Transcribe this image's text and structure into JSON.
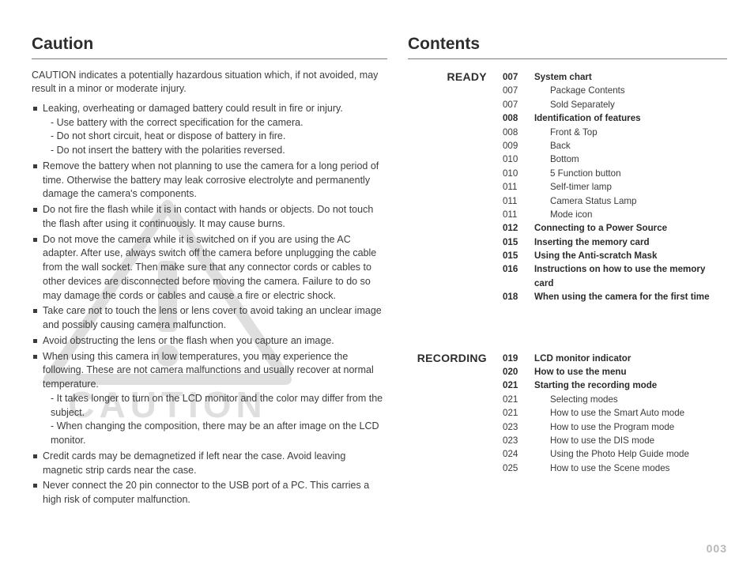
{
  "left": {
    "heading": "Caution",
    "intro": "CAUTION indicates a potentially hazardous situation which, if not avoided, may result in a minor or moderate injury.",
    "items": [
      {
        "text": "Leaking, overheating or damaged battery could result in fire or injury.",
        "subs": [
          "- Use battery with the correct specification for the camera.",
          "- Do not short circuit, heat or dispose of battery in fire.",
          "- Do not insert the battery with the polarities reversed."
        ]
      },
      {
        "text": "Remove the battery when not planning to use the camera for a long period of time. Otherwise the battery may leak corrosive electrolyte and permanently damage the camera's components."
      },
      {
        "text": "Do not fire the flash while it is in contact with hands or objects. Do not touch the flash after using it continuously. It may cause burns."
      },
      {
        "text": "Do not move the camera while it is switched on if you are using the AC adapter. After use, always switch off the camera before unplugging the cable from the wall socket. Then make sure that any connector cords or cables to other devices are disconnected before moving the camera. Failure to do so may damage the cords or cables and cause a fire or electric shock."
      },
      {
        "text": "Take care not to touch the lens or lens cover to avoid taking an unclear image and possibly causing camera malfunction."
      },
      {
        "text": "Avoid obstructing the lens or the flash when you capture an image."
      },
      {
        "text": "When using this camera in low temperatures, you may experience the following. These are not camera malfunctions and usually recover at normal temperature.",
        "subs": [
          "- It takes longer to turn on the LCD monitor and the color may differ from the subject.",
          "- When changing the composition, there may be an after image on the LCD monitor."
        ]
      },
      {
        "text": "Credit cards may be demagnetized if left near the case. Avoid leaving magnetic strip cards near the case."
      },
      {
        "text": "Never connect the 20 pin connector to the USB port of a PC. This carries a high risk of computer malfunction."
      }
    ]
  },
  "right": {
    "heading": "Contents",
    "sections": [
      {
        "label": "READY",
        "entries": [
          {
            "page": "007",
            "title": "System chart",
            "bold": true
          },
          {
            "page": "007",
            "title": "Package Contents",
            "indent": true
          },
          {
            "page": "007",
            "title": "Sold Separately",
            "indent": true
          },
          {
            "page": "008",
            "title": "Identification of features",
            "bold": true
          },
          {
            "page": "008",
            "title": "Front & Top",
            "indent": true
          },
          {
            "page": "009",
            "title": "Back",
            "indent": true
          },
          {
            "page": "010",
            "title": "Bottom",
            "indent": true
          },
          {
            "page": "010",
            "title": "5 Function button",
            "indent": true
          },
          {
            "page": "011",
            "title": "Self-timer lamp",
            "indent": true
          },
          {
            "page": "011",
            "title": "Camera Status Lamp",
            "indent": true
          },
          {
            "page": "011",
            "title": "Mode icon",
            "indent": true
          },
          {
            "page": "012",
            "title": "Connecting to a Power Source",
            "bold": true
          },
          {
            "page": "015",
            "title": "Inserting the memory card",
            "bold": true
          },
          {
            "page": "015",
            "title": "Using the Anti-scratch Mask",
            "bold": true
          },
          {
            "page": "016",
            "title": "Instructions on how to use the memory card",
            "bold": true
          },
          {
            "page": "018",
            "title": "When using the camera for the first time",
            "bold": true
          }
        ]
      },
      {
        "label": "RECORDING",
        "entries": [
          {
            "page": "019",
            "title": "LCD monitor indicator",
            "bold": true
          },
          {
            "page": "020",
            "title": "How to use the menu",
            "bold": true
          },
          {
            "page": "021",
            "title": "Starting the recording mode",
            "bold": true
          },
          {
            "page": "021",
            "title": "Selecting modes",
            "indent": true
          },
          {
            "page": "021",
            "title": "How to use the Smart Auto mode",
            "indent": true
          },
          {
            "page": "023",
            "title": "How to use the Program mode",
            "indent": true
          },
          {
            "page": "023",
            "title": "How to use the DIS mode",
            "indent": true
          },
          {
            "page": "024",
            "title": "Using the Photo Help Guide mode",
            "indent": true
          },
          {
            "page": "025",
            "title": "How to use the Scene modes",
            "indent": true
          }
        ]
      }
    ]
  },
  "pageNumber": "003",
  "watermarkText": "CAUTION",
  "colors": {
    "text": "#3a3a3a",
    "headingRule": "#7a7a7a",
    "pageNum": "#b8b8b8",
    "watermark": "#000000",
    "watermarkOpacity": 0.12
  }
}
